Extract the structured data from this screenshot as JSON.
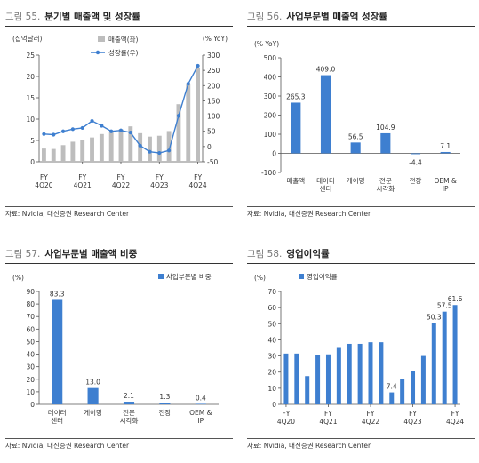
{
  "source": "자료: Nvidia, 대신증권 Research Center",
  "charts": [
    {
      "fig_num": "그림 55.",
      "fig_title": "분기별 매출액 및 성장률",
      "chart_data": {
        "type": "bar+line",
        "y_left_unit": "(십억달러)",
        "y_right_unit": "(% YoY)",
        "legend": [
          "매출액(좌)",
          "성장률(우)"
        ],
        "legend_position": "top-right",
        "x_tick_labels": [
          [
            "FY",
            "4Q20"
          ],
          [
            "FY",
            "4Q21"
          ],
          [
            "FY",
            "4Q22"
          ],
          [
            "FY",
            "4Q23"
          ],
          [
            "FY",
            "4Q24"
          ]
        ],
        "x_tick_index": [
          0,
          4,
          8,
          12,
          16
        ],
        "y_left_ticks": [
          0,
          5,
          10,
          15,
          20,
          25
        ],
        "y_right_ticks": [
          -50,
          0,
          50,
          100,
          150,
          200,
          250,
          300
        ],
        "ylim_left": [
          0,
          25
        ],
        "ylim_right": [
          -50,
          300
        ],
        "bar_values": [
          3.1,
          3.0,
          3.9,
          4.7,
          5.0,
          5.7,
          6.5,
          7.1,
          7.6,
          8.3,
          6.7,
          5.9,
          6.1,
          7.2,
          13.5,
          18.1,
          22.1
        ],
        "line_values": [
          41,
          39,
          50,
          57,
          61,
          84,
          68,
          50,
          53,
          46,
          3,
          -17,
          -21,
          -13,
          101,
          206,
          265
        ],
        "grid": false
      }
    },
    {
      "fig_num": "그림 56.",
      "fig_title": "사업부문별 매출액 성장률",
      "chart_data": {
        "type": "bar",
        "y_unit": "(% YoY)",
        "categories": [
          [
            "매출액"
          ],
          [
            "데이터",
            "센터"
          ],
          [
            "게이밍"
          ],
          [
            "전문",
            "시각화"
          ],
          [
            "전장"
          ],
          [
            "OEM &",
            "IP"
          ]
        ],
        "values": [
          265.3,
          409.0,
          56.5,
          104.9,
          -4.4,
          7.1
        ],
        "value_labels": [
          "265.3",
          "409.0",
          "56.5",
          "104.9",
          "-4.4",
          "7.1"
        ],
        "y_ticks": [
          -100,
          0,
          100,
          200,
          300,
          400,
          500
        ],
        "ylim": [
          -100,
          500
        ],
        "grid": false
      }
    },
    {
      "fig_num": "그림 57.",
      "fig_title": "사업부문별 매출액 비중",
      "chart_data": {
        "type": "bar",
        "y_unit": "(%)",
        "legend": [
          "사업부문별 비중"
        ],
        "legend_position": "top-right",
        "categories": [
          [
            "데이터",
            "센터"
          ],
          [
            "게이밍"
          ],
          [
            "전문",
            "시각화"
          ],
          [
            "전장"
          ],
          [
            "OEM &",
            "IP"
          ]
        ],
        "values": [
          83.3,
          13.0,
          2.1,
          1.3,
          0.4
        ],
        "value_labels": [
          "83.3",
          "13.0",
          "2.1",
          "1.3",
          "0.4"
        ],
        "y_ticks": [
          0,
          10,
          20,
          30,
          40,
          50,
          60,
          70,
          80,
          90
        ],
        "ylim": [
          0,
          90
        ],
        "grid": false
      }
    },
    {
      "fig_num": "그림 58.",
      "fig_title": "영업이익률",
      "chart_data": {
        "type": "bar",
        "y_unit": "(%)",
        "legend": [
          "영업이익률"
        ],
        "legend_position": "top-left",
        "x_tick_labels": [
          [
            "FY",
            "4Q20"
          ],
          [
            "FY",
            "4Q21"
          ],
          [
            "FY",
            "4Q22"
          ],
          [
            "FY",
            "4Q23"
          ],
          [
            "FY",
            "4Q24"
          ]
        ],
        "x_tick_index": [
          0,
          4,
          8,
          12,
          16
        ],
        "values": [
          31.5,
          31.5,
          17.5,
          30.5,
          31,
          35,
          37.5,
          37.5,
          38.5,
          38.5,
          7.4,
          15.5,
          20.5,
          30,
          50.3,
          57.5,
          61.6
        ],
        "value_labels": {
          "10": "7.4",
          "14": "50.3",
          "15": "57.5",
          "16": "61.6"
        },
        "y_ticks": [
          0,
          10,
          20,
          30,
          40,
          50,
          60,
          70
        ],
        "ylim": [
          0,
          70
        ],
        "grid": false
      }
    }
  ]
}
